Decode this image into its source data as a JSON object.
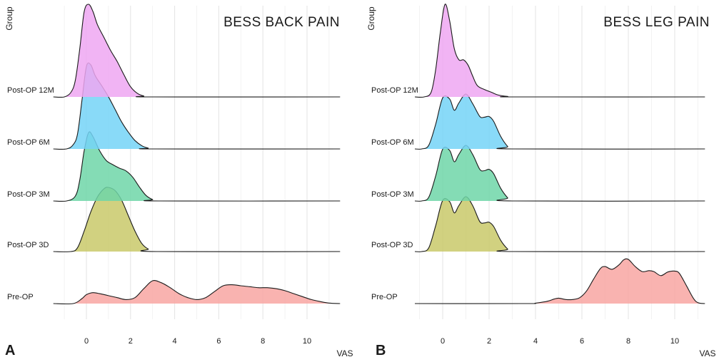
{
  "chart_data": [
    {
      "type": "ridgeline",
      "panel_label": "A",
      "title": "BESS BACK PAIN",
      "xlabel": "VAS",
      "ylabel": "Group",
      "xlim": [
        -1.5,
        11.5
      ],
      "xticks": [
        0,
        2,
        4,
        6,
        8,
        10
      ],
      "grid": true,
      "groups": [
        {
          "name": "Pre-OP",
          "color": "#F8A6A2",
          "x": [
            -1.5,
            -0.6,
            -0.2,
            0,
            0.3,
            0.6,
            1,
            1.4,
            1.8,
            2.2,
            2.6,
            3,
            3.4,
            3.8,
            4.2,
            4.6,
            5,
            5.4,
            5.8,
            6.2,
            6.6,
            7,
            7.4,
            7.8,
            8.2,
            8.6,
            9,
            9.4,
            9.8,
            10.2,
            10.6,
            11,
            11.5
          ],
          "density": [
            0,
            0,
            0.05,
            0.09,
            0.11,
            0.1,
            0.08,
            0.06,
            0.04,
            0.06,
            0.15,
            0.23,
            0.21,
            0.16,
            0.1,
            0.06,
            0.04,
            0.06,
            0.12,
            0.18,
            0.19,
            0.18,
            0.17,
            0.16,
            0.16,
            0.15,
            0.13,
            0.1,
            0.07,
            0.04,
            0.02,
            0.005,
            0
          ]
        },
        {
          "name": "Post-OP 3D",
          "color": "#C9C96A",
          "x": [
            -1.5,
            -0.7,
            -0.4,
            -0.1,
            0.2,
            0.5,
            0.8,
            1,
            1.3,
            1.6,
            1.9,
            2.2,
            2.5,
            2.8,
            3.2,
            11.5
          ],
          "density": [
            0,
            0,
            0.06,
            0.32,
            0.62,
            0.85,
            0.98,
            1.0,
            0.95,
            0.8,
            0.56,
            0.32,
            0.13,
            0.04,
            0,
            0
          ]
        },
        {
          "name": "Post-OP 3M",
          "color": "#6ED6A8",
          "x": [
            -1.5,
            -0.9,
            -0.5,
            -0.3,
            -0.1,
            0.1,
            0.3,
            0.6,
            0.9,
            1.2,
            1.5,
            1.8,
            2.1,
            2.4,
            2.7,
            3.0,
            3.3,
            11.5
          ],
          "density": [
            0,
            0,
            0.07,
            0.3,
            0.72,
            0.98,
            0.92,
            0.72,
            0.58,
            0.52,
            0.47,
            0.43,
            0.34,
            0.2,
            0.08,
            0.02,
            0,
            0
          ]
        },
        {
          "name": "Post-OP 6M",
          "color": "#74D3F7",
          "x": [
            -1.5,
            -0.9,
            -0.6,
            -0.4,
            -0.2,
            0,
            0.2,
            0.4,
            0.7,
            1.0,
            1.3,
            1.6,
            1.9,
            2.2,
            2.5,
            2.8,
            3.1,
            11.5
          ],
          "density": [
            0,
            0,
            0.05,
            0.18,
            0.58,
            0.98,
            1.0,
            0.87,
            0.75,
            0.62,
            0.47,
            0.32,
            0.2,
            0.1,
            0.04,
            0.01,
            0,
            0
          ]
        },
        {
          "name": "Post-OP 12M",
          "color": "#EEA7F2",
          "x": [
            -1.5,
            -1.0,
            -0.7,
            -0.5,
            -0.3,
            -0.1,
            0.1,
            0.3,
            0.5,
            0.8,
            1.1,
            1.4,
            1.7,
            2.0,
            2.3,
            2.6,
            3.0,
            11.5
          ],
          "density": [
            0,
            0,
            0.05,
            0.18,
            0.52,
            0.92,
            1.0,
            0.92,
            0.78,
            0.64,
            0.5,
            0.38,
            0.24,
            0.11,
            0.04,
            0.01,
            0,
            0
          ]
        }
      ]
    },
    {
      "type": "ridgeline",
      "panel_label": "B",
      "title": "BESS LEG PAIN",
      "xlabel": "VAS",
      "ylabel": "Group",
      "xlim": [
        -1.2,
        11.3
      ],
      "xticks": [
        0,
        2,
        4,
        6,
        8,
        10
      ],
      "grid": true,
      "groups": [
        {
          "name": "Pre-OP",
          "color": "#F8A6A2",
          "x": [
            -1.2,
            3.5,
            4.0,
            4.5,
            4.8,
            5.0,
            5.3,
            5.6,
            5.9,
            6.2,
            6.5,
            6.8,
            7.0,
            7.3,
            7.6,
            7.8,
            8.0,
            8.3,
            8.6,
            8.9,
            9.1,
            9.4,
            9.7,
            10.0,
            10.2,
            10.5,
            10.8,
            11.0,
            11.3
          ],
          "density": [
            0,
            0,
            0.01,
            0.05,
            0.1,
            0.12,
            0.09,
            0.09,
            0.13,
            0.28,
            0.54,
            0.78,
            0.82,
            0.76,
            0.86,
            0.97,
            0.98,
            0.82,
            0.71,
            0.73,
            0.71,
            0.62,
            0.7,
            0.72,
            0.67,
            0.4,
            0.12,
            0.02,
            0
          ]
        },
        {
          "name": "Post-OP 3D",
          "color": "#C9C96A",
          "x": [
            -1.2,
            -0.9,
            -0.6,
            -0.3,
            0,
            0.3,
            0.5,
            0.7,
            1.0,
            1.3,
            1.6,
            1.8,
            2.0,
            2.2,
            2.5,
            2.8,
            3.0,
            11.3
          ],
          "density": [
            0,
            0,
            0.06,
            0.42,
            0.82,
            0.8,
            0.62,
            0.74,
            0.88,
            0.73,
            0.48,
            0.46,
            0.47,
            0.4,
            0.18,
            0.04,
            0,
            0
          ]
        },
        {
          "name": "Post-OP 3M",
          "color": "#6ED6A8",
          "x": [
            -1.2,
            -0.9,
            -0.6,
            -0.3,
            0,
            0.3,
            0.5,
            0.7,
            1.0,
            1.3,
            1.6,
            1.8,
            2.0,
            2.2,
            2.5,
            2.8,
            3.0,
            11.3
          ],
          "density": [
            0,
            0,
            0.06,
            0.4,
            0.82,
            0.8,
            0.62,
            0.74,
            0.88,
            0.73,
            0.5,
            0.48,
            0.5,
            0.43,
            0.2,
            0.05,
            0,
            0
          ]
        },
        {
          "name": "Post-OP 6M",
          "color": "#74D3F7",
          "x": [
            -1.2,
            -0.9,
            -0.6,
            -0.3,
            0,
            0.3,
            0.5,
            0.7,
            1.0,
            1.3,
            1.6,
            1.8,
            2.0,
            2.2,
            2.5,
            2.8,
            3.0,
            11.3
          ],
          "density": [
            0,
            0,
            0.06,
            0.4,
            0.82,
            0.8,
            0.62,
            0.74,
            0.88,
            0.72,
            0.52,
            0.51,
            0.52,
            0.44,
            0.2,
            0.04,
            0,
            0
          ]
        },
        {
          "name": "Post-OP 12M",
          "color": "#EEA7F2",
          "x": [
            -1.2,
            -0.8,
            -0.5,
            -0.3,
            -0.1,
            0.1,
            0.3,
            0.5,
            0.7,
            0.9,
            1.1,
            1.3,
            1.5,
            1.8,
            2.1,
            2.4,
            2.8,
            3.2,
            11.3
          ],
          "density": [
            0,
            0,
            0.05,
            0.3,
            0.7,
            1.0,
            0.82,
            0.52,
            0.4,
            0.4,
            0.34,
            0.22,
            0.12,
            0.08,
            0.05,
            0.02,
            0.005,
            0,
            0
          ]
        }
      ]
    }
  ]
}
